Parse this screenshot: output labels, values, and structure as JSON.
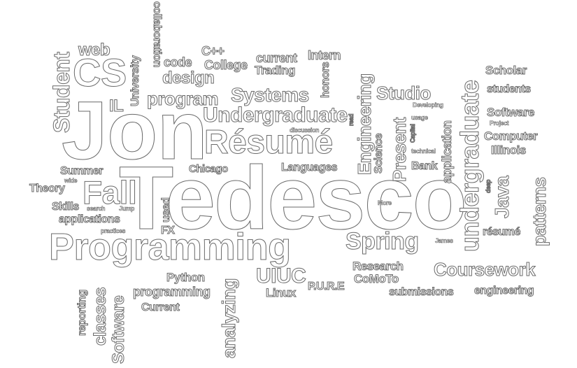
{
  "words": {
    "jon": "Jon",
    "tedesco": "Tedesco",
    "programming_cap": "Programming",
    "resume_cap": "Résumé",
    "undergraduate_cap": "Undergraduate",
    "undergraduate_low": "undergraduate",
    "cs": "CS",
    "fall": "Fall",
    "student": "Student",
    "spring": "Spring",
    "coursework": "Coursework",
    "systems": "Systems",
    "program": "program",
    "design": "design",
    "web": "web",
    "code": "code",
    "college": "College",
    "cpp": "C++",
    "current_low": "current",
    "trading": "Trading",
    "intern": "Intern",
    "honors": "honors",
    "engineering_cap": "Engineering",
    "studio": "Studio",
    "scholar": "Scholar",
    "students": "students",
    "software_cap": "Software",
    "computer": "Computer",
    "illinois": "Illinois",
    "project": "Project",
    "developing": "Developing",
    "usage": "usage",
    "discussion": "discussion",
    "read": "read",
    "present": "Present",
    "science": "Science",
    "capital": "Capital",
    "technical": "technical",
    "bank": "Bank",
    "application": "application",
    "languages": "Languages",
    "chicago": "Chicago",
    "summer": "Summer",
    "wide": "wide",
    "theory": "Theory",
    "skills": "Skills",
    "search": "search",
    "jump": "Jump",
    "applications": "applications",
    "practices": "practices",
    "used": "used",
    "fx": "FX",
    "university": "University",
    "collaboration": "collaboration",
    "il": "IL",
    "java": "Java",
    "deep": "deep",
    "patterns": "patterns",
    "resume_low": "résumé",
    "more": "More",
    "james": "James",
    "research": "Research",
    "comoto": "CoMoTo",
    "pure": "P.U.R.E",
    "uiuc": "UIUC",
    "linux": "Linux",
    "submissions": "submissions",
    "engineering_low": "engineering",
    "python": "Python",
    "programming_low": "programming",
    "current_cap": "Current",
    "analyzing": "analyzing",
    "reporting": "reporting",
    "classes": "classes",
    "software_vert": "Software"
  },
  "colors": {
    "fill": "#ffffff",
    "outline": "#6a6a6a",
    "background": "#ffffff"
  }
}
